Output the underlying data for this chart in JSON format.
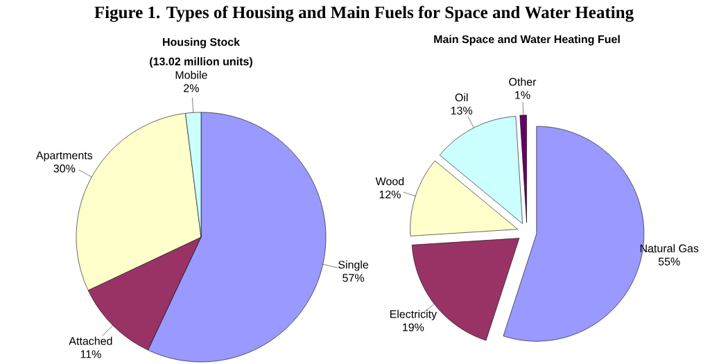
{
  "chart_data": [
    {
      "type": "pie",
      "title": "Housing Stock",
      "subtitle": "(13.02 million units)",
      "annotations": [
        "Figure 1.  Types of Housing and Main Fuels for Space and Water Heating"
      ],
      "categories": [
        "Single",
        "Attached",
        "Apartments",
        "Mobile"
      ],
      "values": [
        57,
        11,
        30,
        2
      ],
      "colors": [
        "#9999ff",
        "#993366",
        "#ffffcc",
        "#ccffff"
      ],
      "value_labels": [
        "57%",
        "11%",
        "30%",
        "2%"
      ]
    },
    {
      "type": "pie",
      "title": "Main Space and Water Heating Fuel",
      "categories": [
        "Natural Gas",
        "Electricity",
        "Wood",
        "Oil",
        "Other"
      ],
      "values": [
        55,
        19,
        12,
        13,
        1
      ],
      "colors": [
        "#9999ff",
        "#993366",
        "#ffffcc",
        "#ccffff",
        "#660066"
      ],
      "value_labels": [
        "55%",
        "19%",
        "12%",
        "13%",
        "1%"
      ]
    }
  ]
}
